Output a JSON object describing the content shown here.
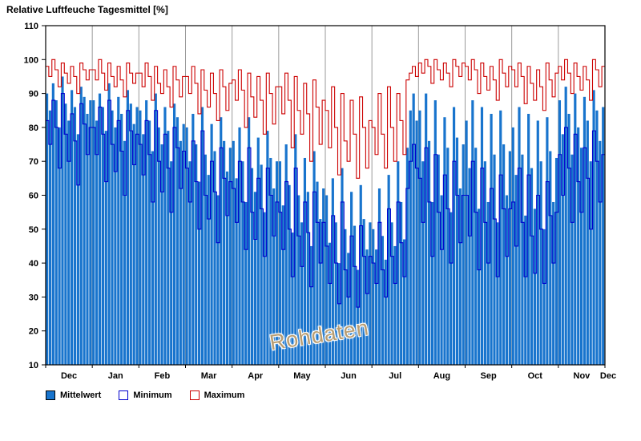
{
  "title": "Relative Luftfeuche Tagesmittel [%]",
  "watermark": "Rohdaten",
  "legend": [
    {
      "label": "Mittelwert",
      "style": "fill",
      "color": "#1874CD"
    },
    {
      "label": "Minimum",
      "style": "outline",
      "color": "#0000CD"
    },
    {
      "label": "Maximum",
      "style": "outline",
      "color": "#CC0000"
    }
  ],
  "chart_data": {
    "type": "bar",
    "title": "Relative Luftfeuche Tagesmittel [%]",
    "xlabel": "",
    "ylabel": "%",
    "ylim": [
      10,
      110
    ],
    "ytick_step": 10,
    "grid": "vertical-month-lines-only",
    "legend_position": "bottom-left",
    "x_months": [
      "Dec",
      "Jan",
      "Feb",
      "Mar",
      "Apr",
      "May",
      "Jun",
      "Jul",
      "Aug",
      "Sep",
      "Oct",
      "Nov",
      "Dec"
    ],
    "points_per_month": 15,
    "annotation": "Rohdaten",
    "series": [
      {
        "name": "Mittelwert",
        "render": "bar",
        "color": "#1874CD",
        "values": [
          90,
          85,
          93,
          88,
          80,
          95,
          87,
          82,
          91,
          86,
          78,
          92,
          89,
          84,
          88,
          88,
          82,
          90,
          86,
          79,
          93,
          85,
          80,
          89,
          84,
          76,
          91,
          87,
          81,
          86,
          85,
          78,
          88,
          82,
          73,
          90,
          80,
          75,
          86,
          79,
          70,
          87,
          83,
          76,
          81,
          80,
          70,
          84,
          75,
          64,
          86,
          72,
          66,
          81,
          73,
          60,
          83,
          76,
          67,
          74,
          76,
          65,
          80,
          70,
          58,
          83,
          68,
          61,
          77,
          69,
          55,
          79,
          71,
          62,
          70,
          70,
          57,
          75,
          63,
          49,
          78,
          60,
          52,
          71,
          61,
          45,
          73,
          64,
          53,
          62,
          60,
          46,
          65,
          52,
          40,
          68,
          50,
          43,
          61,
          51,
          38,
          63,
          53,
          44,
          52,
          50,
          44,
          62,
          48,
          41,
          66,
          52,
          45,
          70,
          58,
          47,
          74,
          85,
          90,
          82,
          85,
          70,
          90,
          76,
          58,
          88,
          72,
          60,
          83,
          74,
          55,
          86,
          77,
          62,
          75,
          82,
          68,
          88,
          74,
          56,
          86,
          70,
          58,
          84,
          72,
          52,
          85,
          75,
          60,
          73,
          80,
          66,
          86,
          72,
          54,
          84,
          68,
          56,
          82,
          70,
          50,
          83,
          73,
          58,
          71,
          88,
          78,
          92,
          84,
          72,
          90,
          80,
          74,
          89,
          82,
          70,
          91,
          85,
          76,
          86
        ]
      },
      {
        "name": "Minimum",
        "render": "step-line",
        "color": "#0000CD",
        "values": [
          82,
          75,
          88,
          80,
          68,
          90,
          78,
          70,
          84,
          76,
          63,
          87,
          81,
          72,
          80,
          80,
          72,
          86,
          78,
          64,
          88,
          75,
          67,
          82,
          73,
          60,
          85,
          79,
          69,
          78,
          75,
          66,
          82,
          72,
          58,
          85,
          70,
          61,
          78,
          68,
          55,
          80,
          74,
          62,
          73,
          68,
          58,
          76,
          64,
          50,
          79,
          60,
          53,
          70,
          61,
          46,
          74,
          65,
          54,
          64,
          62,
          52,
          70,
          58,
          44,
          74,
          55,
          47,
          65,
          56,
          42,
          68,
          60,
          48,
          58,
          55,
          44,
          64,
          50,
          36,
          68,
          48,
          39,
          58,
          49,
          33,
          61,
          52,
          40,
          52,
          45,
          34,
          54,
          40,
          28,
          58,
          38,
          30,
          48,
          39,
          27,
          51,
          42,
          31,
          42,
          40,
          34,
          52,
          38,
          30,
          56,
          42,
          34,
          58,
          46,
          36,
          62,
          70,
          75,
          68,
          65,
          52,
          74,
          58,
          42,
          72,
          55,
          44,
          66,
          56,
          40,
          70,
          60,
          46,
          60,
          60,
          48,
          70,
          55,
          38,
          68,
          52,
          40,
          62,
          53,
          36,
          66,
          56,
          42,
          56,
          58,
          45,
          68,
          52,
          36,
          66,
          48,
          37,
          60,
          50,
          34,
          64,
          54,
          40,
          55,
          72,
          60,
          80,
          68,
          52,
          78,
          64,
          55,
          74,
          65,
          50,
          79,
          70,
          58,
          72
        ]
      },
      {
        "name": "Maximum",
        "render": "step-line",
        "color": "#CC0000",
        "values": [
          98,
          95,
          100,
          97,
          92,
          99,
          96,
          93,
          98,
          95,
          90,
          99,
          97,
          94,
          97,
          97,
          94,
          100,
          96,
          91,
          99,
          95,
          92,
          98,
          94,
          89,
          99,
          96,
          93,
          96,
          96,
          92,
          99,
          95,
          88,
          98,
          93,
          90,
          97,
          92,
          86,
          98,
          94,
          89,
          95,
          95,
          90,
          98,
          93,
          84,
          97,
          91,
          86,
          96,
          90,
          82,
          97,
          92,
          85,
          93,
          94,
          88,
          97,
          91,
          80,
          96,
          89,
          83,
          95,
          88,
          78,
          96,
          90,
          81,
          92,
          92,
          84,
          96,
          88,
          74,
          95,
          85,
          78,
          93,
          84,
          70,
          94,
          86,
          75,
          88,
          85,
          74,
          92,
          80,
          66,
          90,
          76,
          70,
          88,
          78,
          65,
          89,
          80,
          68,
          82,
          80,
          72,
          90,
          78,
          68,
          92,
          80,
          70,
          90,
          82,
          72,
          94,
          96,
          98,
          95,
          99,
          96,
          100,
          98,
          93,
          100,
          97,
          94,
          99,
          96,
          92,
          100,
          98,
          95,
          99,
          98,
          94,
          100,
          97,
          90,
          99,
          95,
          91,
          98,
          94,
          88,
          100,
          96,
          92,
          98,
          97,
          92,
          99,
          95,
          87,
          98,
          93,
          88,
          97,
          92,
          85,
          99,
          94,
          89,
          96,
          98,
          94,
          100,
          96,
          90,
          99,
          95,
          91,
          98,
          94,
          88,
          100,
          97,
          92,
          98
        ]
      }
    ]
  }
}
